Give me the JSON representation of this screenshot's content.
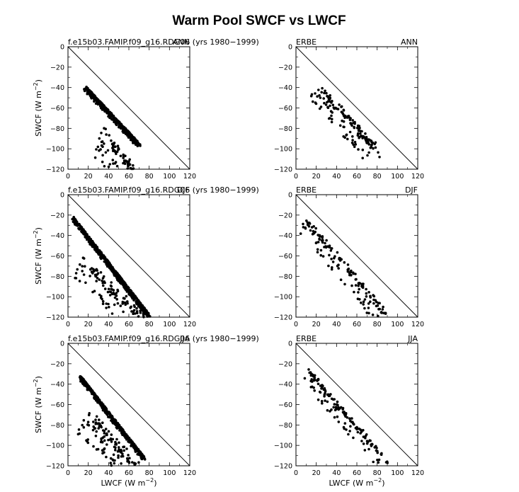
{
  "figure_title": "Warm Pool SWCF vs LWCF",
  "axis_labels": {
    "xlabel": "LWCF (W m",
    "ylabel": "SWCF (W m",
    "unit_exponent": "−2"
  },
  "chart_data": [
    {
      "type": "scatter",
      "position": "top-left",
      "left_title": "f.e15b03.FAMIP.f09_g16.RDG06 (yrs 1980−1999)",
      "right_title": "ANN",
      "xlim": [
        0,
        120
      ],
      "ylim": [
        -120,
        0
      ],
      "x_ticks": [
        0,
        20,
        40,
        60,
        80,
        100,
        120
      ],
      "y_ticks": [
        0,
        -20,
        -40,
        -60,
        -80,
        -100,
        -120
      ],
      "reference_line": "x = -y",
      "clusters": [
        {
          "x_range": [
            18,
            70
          ],
          "y_range": [
            -40,
            -95
          ],
          "spread": 0.35,
          "n": 520,
          "main": true
        },
        {
          "x_range": [
            35,
            65
          ],
          "y_range": [
            -80,
            -118
          ],
          "spread": 0.9,
          "n": 110
        }
      ]
    },
    {
      "type": "scatter",
      "position": "top-right",
      "left_title": "ERBE",
      "right_title": "ANN",
      "xlim": [
        0,
        120
      ],
      "ylim": [
        -120,
        0
      ],
      "x_ticks": [
        0,
        20,
        40,
        60,
        80,
        100,
        120
      ],
      "y_ticks": [
        0,
        -20,
        -40,
        -60,
        -80,
        -100,
        -120
      ],
      "reference_line": "x = -y",
      "clusters": [
        {
          "x_range": [
            22,
            78
          ],
          "y_range": [
            -34,
            -95
          ],
          "spread": 0.7,
          "n": 150
        }
      ]
    },
    {
      "type": "scatter",
      "position": "middle-left",
      "left_title": "f.e15b03.FAMIP.f09_g16.RDG06 (yrs 1980−1999)",
      "right_title": "DJF",
      "xlim": [
        0,
        120
      ],
      "ylim": [
        -120,
        0
      ],
      "x_ticks": [
        0,
        20,
        40,
        60,
        80,
        100,
        120
      ],
      "y_ticks": [
        0,
        -20,
        -40,
        -60,
        -80,
        -100,
        -120
      ],
      "reference_line": "x = -y",
      "clusters": [
        {
          "x_range": [
            5,
            80
          ],
          "y_range": [
            -22,
            -118
          ],
          "spread": 0.32,
          "n": 620,
          "main": true
        },
        {
          "x_range": [
            15,
            75
          ],
          "y_range": [
            -60,
            -118
          ],
          "spread": 0.8,
          "n": 120
        }
      ]
    },
    {
      "type": "scatter",
      "position": "middle-right",
      "left_title": "ERBE",
      "right_title": "DJF",
      "xlim": [
        0,
        120
      ],
      "ylim": [
        -120,
        0
      ],
      "x_ticks": [
        0,
        20,
        40,
        60,
        80,
        100,
        120
      ],
      "y_ticks": [
        0,
        -20,
        -40,
        -60,
        -80,
        -100,
        -120
      ],
      "reference_line": "x = -y",
      "clusters": [
        {
          "x_range": [
            10,
            90
          ],
          "y_range": [
            -22,
            -115
          ],
          "spread": 0.6,
          "n": 150
        }
      ]
    },
    {
      "type": "scatter",
      "position": "bottom-left",
      "left_title": "f.e15b03.FAMIP.f09_g16.RDG06 (yrs 1980−1999)",
      "right_title": "JJA",
      "xlim": [
        0,
        120
      ],
      "ylim": [
        -120,
        0
      ],
      "x_ticks": [
        0,
        20,
        40,
        60,
        80,
        100,
        120
      ],
      "y_ticks": [
        0,
        -20,
        -40,
        -60,
        -80,
        -100,
        -120
      ],
      "reference_line": "x = -y",
      "clusters": [
        {
          "x_range": [
            12,
            75
          ],
          "y_range": [
            -32,
            -112
          ],
          "spread": 0.3,
          "n": 520,
          "main": true
        },
        {
          "x_range": [
            20,
            70
          ],
          "y_range": [
            -65,
            -118
          ],
          "spread": 0.9,
          "n": 130
        }
      ]
    },
    {
      "type": "scatter",
      "position": "bottom-right",
      "left_title": "ERBE",
      "right_title": "JJA",
      "xlim": [
        0,
        120
      ],
      "ylim": [
        -120,
        0
      ],
      "x_ticks": [
        0,
        20,
        40,
        60,
        80,
        100,
        120
      ],
      "y_ticks": [
        0,
        -20,
        -40,
        -60,
        -80,
        -100,
        -120
      ],
      "reference_line": "x = -y",
      "clusters": [
        {
          "x_range": [
            10,
            87
          ],
          "y_range": [
            -22,
            -110
          ],
          "spread": 0.5,
          "n": 150
        }
      ]
    }
  ]
}
